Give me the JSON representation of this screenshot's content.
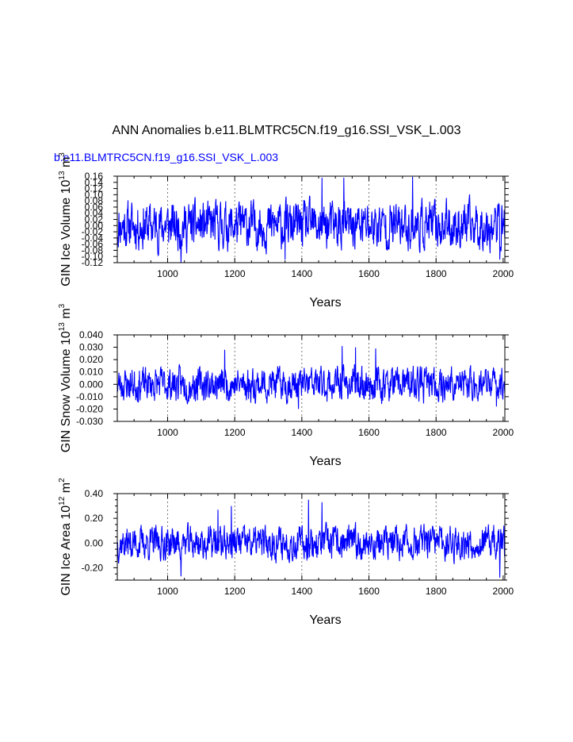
{
  "figure": {
    "title": "ANN Anomalies b.e11.BLMTRC5CN.f19_g16.SSI_VSK_L.003",
    "subtitle": "b.e11.BLMTRC5CN.f19_g16.SSI_VSK_L.003",
    "line_color": "#0000ff"
  },
  "chart_data": [
    {
      "type": "line",
      "series_name": "GIN Ice Volume",
      "ylabel_main": "GIN Ice Volume 10",
      "ylabel_exp": "13",
      "ylabel_unit": " m",
      "ylabel_unit_exp": "3",
      "xlabel": "Years",
      "xlim": [
        850,
        2005
      ],
      "ylim": [
        -0.12,
        0.16
      ],
      "xticks": [
        1000,
        1200,
        1400,
        1600,
        1800,
        2000
      ],
      "xtick_labels": [
        "1000",
        "1200",
        "1400",
        "1600",
        "1800",
        "2000"
      ],
      "yticks": [
        -0.12,
        -0.08,
        -0.04,
        0.0,
        0.04,
        0.08,
        0.12,
        0.16
      ],
      "ytick_labels": [
        "-0.12",
        "-0.08",
        "-0.04",
        "0.00",
        "0.04",
        "0.08",
        "0.12",
        "0.16"
      ],
      "yticks_major": [
        -0.12,
        -0.1,
        -0.08,
        -0.06,
        -0.04,
        -0.02,
        0.0,
        0.02,
        0.04,
        0.06,
        0.08,
        0.1,
        0.12,
        0.14,
        0.16
      ],
      "ytick_labels_all": [
        "-0.12",
        "-0.10",
        "-0.08",
        "-0.06",
        "-0.04",
        "-0.02",
        "0.00",
        "0.02",
        "0.04",
        "0.06",
        "0.08",
        "0.10",
        "0.12",
        "0.14",
        "0.16"
      ],
      "grid_x": [
        1000,
        1200,
        1400,
        1600,
        1800
      ],
      "amplitude": 0.05,
      "seed": 11,
      "peaks": [
        [
          1040,
          -0.12
        ],
        [
          1460,
          0.155
        ],
        [
          1525,
          0.155
        ],
        [
          1730,
          0.158
        ],
        [
          1990,
          -0.11
        ],
        [
          1350,
          -0.11
        ]
      ]
    },
    {
      "type": "line",
      "series_name": "GIN Snow Volume",
      "ylabel_main": "GIN Snow Volume 10",
      "ylabel_exp": "13",
      "ylabel_unit": " m",
      "ylabel_unit_exp": "3",
      "xlabel": "Years",
      "xlim": [
        850,
        2005
      ],
      "ylim": [
        -0.03,
        0.04
      ],
      "xticks": [
        1000,
        1200,
        1400,
        1600,
        1800,
        2000
      ],
      "xtick_labels": [
        "1000",
        "1200",
        "1400",
        "1600",
        "1800",
        "2000"
      ],
      "yticks_major": [
        -0.03,
        -0.02,
        -0.01,
        0.0,
        0.01,
        0.02,
        0.03,
        0.04
      ],
      "ytick_labels_all": [
        "-0.030",
        "-0.020",
        "-0.010",
        "0.000",
        "0.010",
        "0.020",
        "0.030",
        "0.040"
      ],
      "grid_x": [
        1000,
        1200,
        1400,
        1600,
        1800
      ],
      "amplitude": 0.009,
      "seed": 23,
      "peaks": [
        [
          1390,
          -0.02
        ],
        [
          1520,
          0.031
        ],
        [
          1560,
          0.03
        ],
        [
          1620,
          0.029
        ],
        [
          1170,
          0.028
        ],
        [
          1980,
          -0.018
        ]
      ]
    },
    {
      "type": "line",
      "series_name": "GIN Ice Area",
      "ylabel_main": "GIN Ice Area 10",
      "ylabel_exp": "12",
      "ylabel_unit": " m",
      "ylabel_unit_exp": "2",
      "xlabel": "Years",
      "xlim": [
        850,
        2005
      ],
      "ylim": [
        -0.3,
        0.4
      ],
      "xticks": [
        1000,
        1200,
        1400,
        1600,
        1800,
        2000
      ],
      "xtick_labels": [
        "1000",
        "1200",
        "1400",
        "1600",
        "1800",
        "2000"
      ],
      "yticks_major": [
        -0.2,
        0.0,
        0.2,
        0.4
      ],
      "ytick_labels_all": [
        "-0.20",
        "0.00",
        "0.20",
        "0.40"
      ],
      "yticks_minor": [
        -0.3,
        -0.25,
        -0.15,
        -0.1,
        -0.05,
        0.05,
        0.1,
        0.15,
        0.25,
        0.3,
        0.35
      ],
      "grid_x": [
        1000,
        1200,
        1400,
        1600,
        1800
      ],
      "amplitude": 0.09,
      "seed": 37,
      "peaks": [
        [
          1420,
          0.35
        ],
        [
          1460,
          0.33
        ],
        [
          1150,
          0.27
        ],
        [
          1190,
          0.3
        ],
        [
          1040,
          -0.27
        ],
        [
          1990,
          -0.28
        ]
      ]
    }
  ]
}
